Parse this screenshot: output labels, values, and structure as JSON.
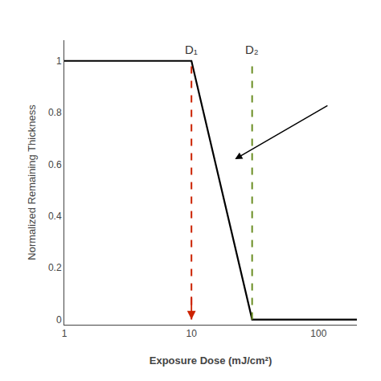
{
  "chart_data": {
    "type": "line",
    "x": [
      1,
      10,
      30,
      200
    ],
    "values": [
      1.0,
      1.0,
      0.0,
      0.0
    ],
    "color": "#000000",
    "xlabel": "Exposure Dose (mJ/cm²)",
    "ylabel": "Normalized Remaining Thickness",
    "xlim": [
      1,
      200
    ],
    "ylim": [
      -0.02,
      1.08
    ],
    "xticks": [
      1,
      10,
      100
    ],
    "yticks": [
      0,
      0.2,
      0.4,
      0.6,
      0.8,
      1
    ],
    "log": "x",
    "grid": false,
    "vlines": [
      {
        "x": 10,
        "y": [
          0,
          1
        ],
        "label": "D₁",
        "color": "#cc2200",
        "line_style": "dashed",
        "marker": "arrow"
      },
      {
        "x": 30,
        "y": [
          0,
          1
        ],
        "label": "D₂",
        "color": "#6b8e23",
        "line_style": "dashed"
      }
    ],
    "arrows": [
      {
        "x_start": 120,
        "y_start": 0.83,
        "x_end": 22,
        "y_end": 0.62
      }
    ]
  }
}
